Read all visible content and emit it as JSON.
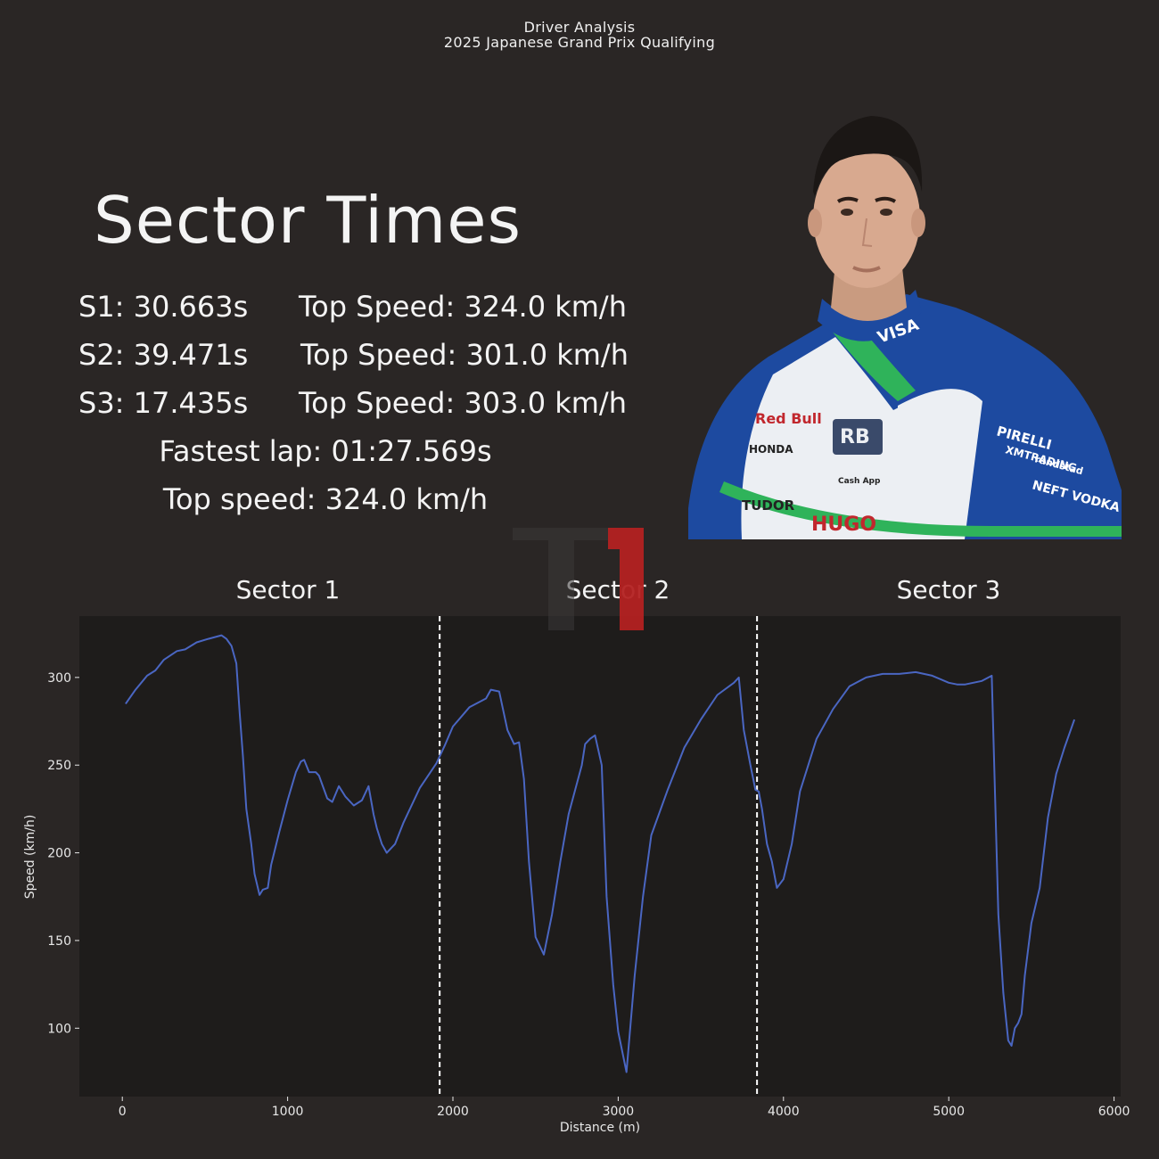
{
  "header": {
    "title_line1": "Driver Analysis",
    "title_line2": "2025 Japanese Grand Prix Qualifying"
  },
  "summary": {
    "heading": "Sector Times",
    "sectors": [
      {
        "time": "S1: 30.663s",
        "top_speed": "Top Speed: 324.0 km/h"
      },
      {
        "time": "S2: 39.471s",
        "top_speed": "Top Speed: 301.0 km/h"
      },
      {
        "time": "S3: 17.435s",
        "top_speed": "Top Speed: 303.0 km/h"
      }
    ],
    "fastest_lap": "Fastest lap: 01:27.569s",
    "top_speed": "Top speed: 324.0 km/h"
  },
  "driver_photo": {
    "sponsor_marks": [
      "VISA",
      "Red Bull",
      "HONDA",
      "TUDOR",
      "HUGO",
      "Cash App",
      "PIRELLI",
      "XMTRADING",
      "randstad",
      "NEFT VODKA"
    ]
  },
  "colors": {
    "background": "#2a2625",
    "plot_background": "#1e1c1b",
    "line": "#4a66c2",
    "watermark_red": "#b32121",
    "divider": "#ffffff"
  },
  "chart_data": {
    "type": "line",
    "sector_titles": [
      "Sector 1",
      "Sector 2",
      "Sector 3"
    ],
    "sector_boundaries": [
      1920,
      3840
    ],
    "xlabel": "Distance (m)",
    "ylabel": "Speed (km/h)",
    "xlim": [
      -260,
      6040
    ],
    "ylim": [
      61,
      335
    ],
    "xticks": [
      0,
      1000,
      2000,
      3000,
      4000,
      5000,
      6000
    ],
    "yticks": [
      100,
      150,
      200,
      250,
      300
    ],
    "grid": false,
    "series": [
      {
        "x": [
          20,
          80,
          150,
          200,
          250,
          330,
          380,
          450,
          520,
          600,
          630,
          660,
          690,
          710,
          730,
          750,
          780,
          800,
          830,
          850,
          880,
          900,
          950,
          1000,
          1050,
          1080,
          1100,
          1130,
          1170,
          1190,
          1240,
          1270,
          1310,
          1350,
          1400,
          1450,
          1490,
          1520,
          1540,
          1570,
          1600,
          1650,
          1700,
          1800,
          1900,
          1950,
          2000,
          2100,
          2200,
          2230,
          2280,
          2330,
          2370,
          2400,
          2430,
          2460,
          2500,
          2550,
          2600,
          2650,
          2700,
          2780,
          2800,
          2830,
          2860,
          2900,
          2930,
          2970,
          3000,
          3050,
          3100,
          3150,
          3200,
          3300,
          3400,
          3500,
          3600,
          3700,
          3730,
          3760,
          3800,
          3830,
          3850,
          3870,
          3900,
          3930,
          3960,
          4000,
          4050,
          4100,
          4200,
          4300,
          4400,
          4500,
          4600,
          4700,
          4800,
          4900,
          5000,
          5050,
          5100,
          5200,
          5260,
          5300,
          5330,
          5360,
          5380,
          5400,
          5420,
          5440,
          5460,
          5500,
          5550,
          5600,
          5650,
          5700,
          5760
        ],
        "y": [
          285,
          293,
          301,
          304,
          310,
          315,
          316,
          320,
          322,
          324,
          322,
          318,
          308,
          280,
          255,
          225,
          205,
          188,
          176,
          179,
          180,
          193,
          212,
          230,
          246,
          252,
          253,
          246,
          246,
          244,
          231,
          229,
          238,
          232,
          227,
          230,
          238,
          222,
          214,
          205,
          200,
          205,
          217,
          237,
          251,
          261,
          272,
          283,
          288,
          293,
          292,
          270,
          262,
          263,
          242,
          195,
          152,
          142,
          165,
          195,
          222,
          250,
          262,
          265,
          267,
          250,
          175,
          125,
          98,
          75,
          130,
          175,
          210,
          236,
          260,
          276,
          290,
          297,
          300,
          270,
          250,
          236,
          235,
          225,
          205,
          195,
          180,
          185,
          205,
          235,
          265,
          282,
          295,
          300,
          302,
          302,
          303,
          301,
          297,
          296,
          296,
          298,
          301,
          165,
          120,
          93,
          90,
          100,
          103,
          108,
          130,
          160,
          180,
          220,
          245,
          260,
          276
        ]
      }
    ]
  }
}
